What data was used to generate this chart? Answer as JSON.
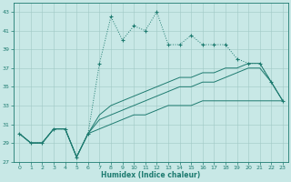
{
  "x": [
    0,
    1,
    2,
    3,
    4,
    5,
    6,
    7,
    8,
    9,
    10,
    11,
    12,
    13,
    14,
    15,
    16,
    17,
    18,
    19,
    20,
    21,
    22,
    23
  ],
  "top_dotted": [
    30.0,
    29.0,
    29.0,
    30.5,
    30.5,
    27.5,
    30.0,
    37.5,
    42.5,
    40.0,
    41.5,
    41.0,
    43.0,
    39.5,
    39.5,
    40.5,
    39.5,
    39.5,
    39.5,
    38.0,
    37.5,
    37.5,
    35.5,
    33.5
  ],
  "line_upper": [
    30.0,
    29.0,
    29.0,
    30.5,
    30.5,
    27.5,
    30.0,
    32.0,
    33.0,
    33.5,
    34.0,
    34.5,
    35.0,
    35.5,
    36.0,
    36.0,
    36.5,
    36.5,
    37.0,
    37.0,
    37.5,
    37.5,
    35.5,
    33.5
  ],
  "line_mid": [
    30.0,
    29.0,
    29.0,
    30.5,
    30.5,
    27.5,
    30.0,
    31.5,
    32.0,
    32.5,
    33.0,
    33.5,
    34.0,
    34.5,
    35.0,
    35.0,
    35.5,
    35.5,
    36.0,
    36.5,
    37.0,
    37.0,
    35.5,
    33.5
  ],
  "line_lower": [
    30.0,
    29.0,
    29.0,
    30.5,
    30.5,
    27.5,
    30.0,
    30.5,
    31.0,
    31.5,
    32.0,
    32.0,
    32.5,
    33.0,
    33.0,
    33.0,
    33.5,
    33.5,
    33.5,
    33.5,
    33.5,
    33.5,
    33.5,
    33.5
  ],
  "color": "#1e7b70",
  "bg_color": "#c8e8e6",
  "grid_color": "#a0c8c5",
  "ylim": [
    27,
    44
  ],
  "xlim": [
    -0.5,
    23.5
  ],
  "yticks": [
    27,
    29,
    31,
    33,
    35,
    37,
    39,
    41,
    43
  ],
  "xticks": [
    0,
    1,
    2,
    3,
    4,
    5,
    6,
    7,
    8,
    9,
    10,
    11,
    12,
    13,
    14,
    15,
    16,
    17,
    18,
    19,
    20,
    21,
    22,
    23
  ],
  "xlabel": "Humidex (Indice chaleur)"
}
